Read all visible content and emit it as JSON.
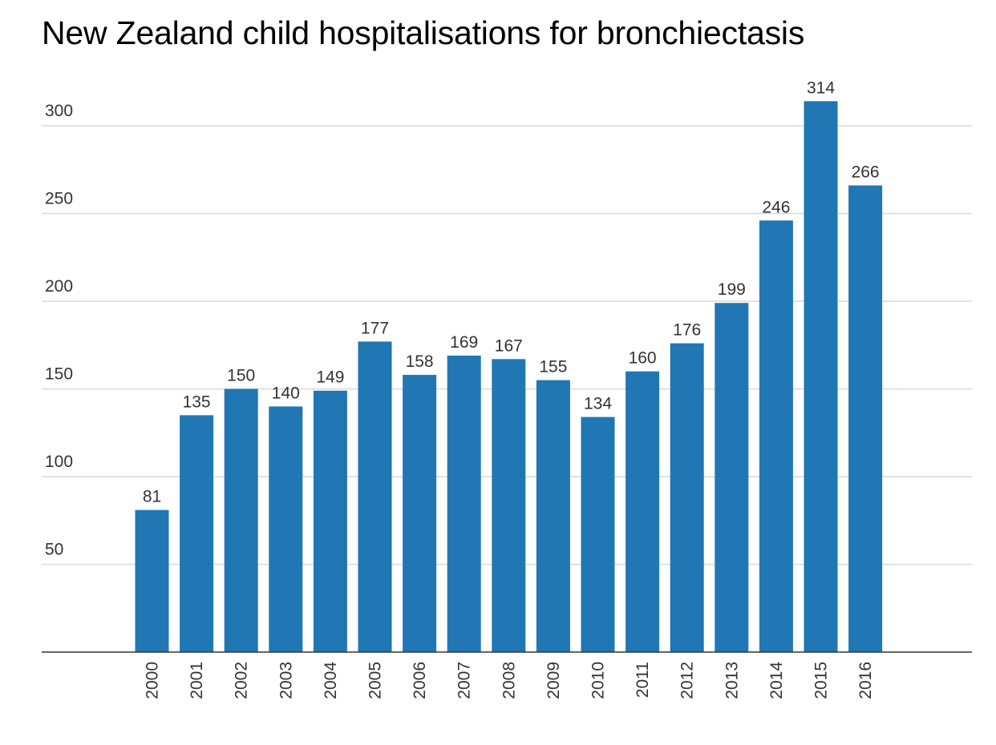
{
  "chart_data": {
    "type": "bar",
    "title": "New Zealand child hospitalisations for bronchiectasis",
    "xlabel": "",
    "ylabel": "",
    "categories": [
      "2000",
      "2001",
      "2002",
      "2003",
      "2004",
      "2005",
      "2006",
      "2007",
      "2008",
      "2009",
      "2010",
      "2011",
      "2012",
      "2013",
      "2014",
      "2015",
      "2016"
    ],
    "values": [
      81,
      135,
      150,
      140,
      149,
      177,
      158,
      169,
      167,
      155,
      134,
      160,
      176,
      199,
      246,
      314,
      266
    ],
    "ylim": [
      0,
      300
    ],
    "y_ticks": [
      50,
      100,
      150,
      200,
      250,
      300
    ],
    "grid": true,
    "data_labels": true,
    "x_tick_rotation": "vertical",
    "bar_color": "#2077b4"
  }
}
